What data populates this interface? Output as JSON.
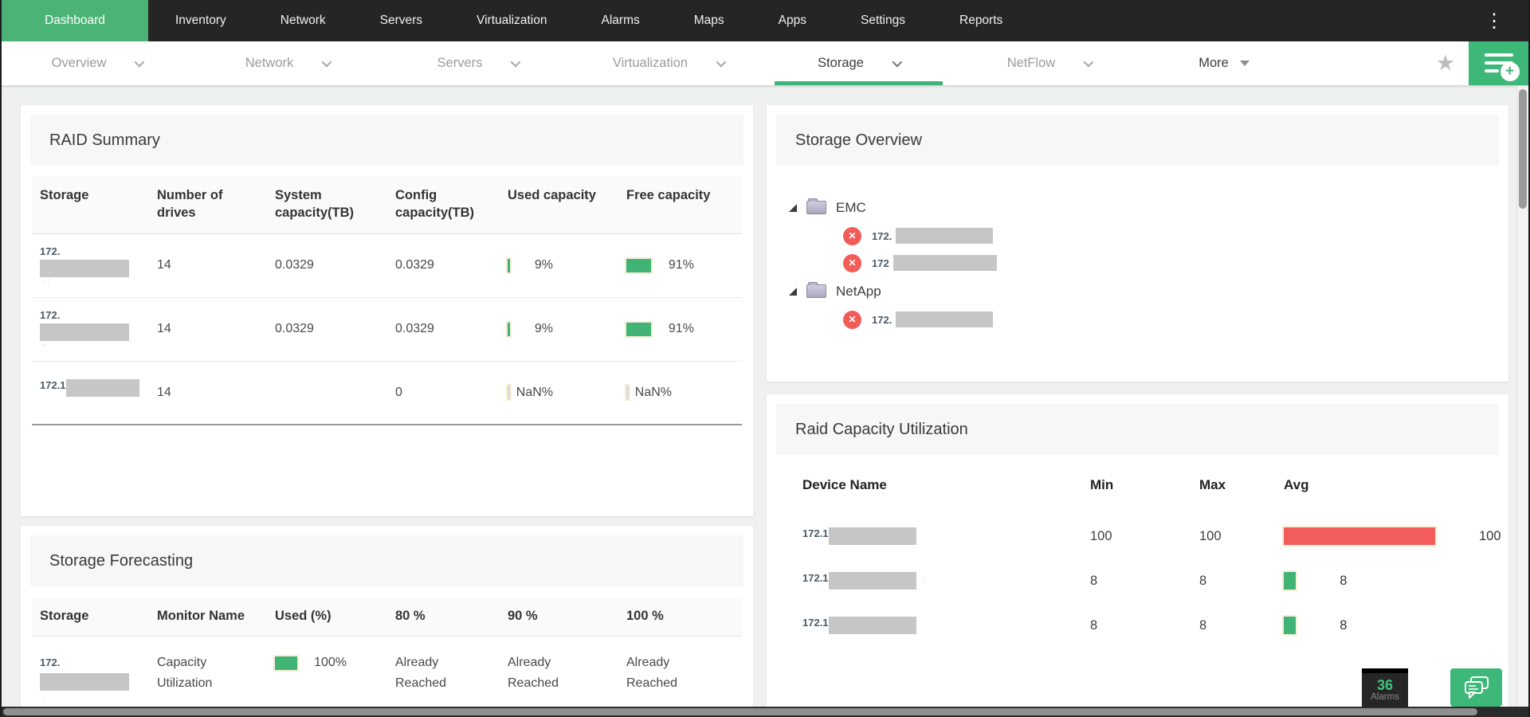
{
  "colors": {
    "accent_green": "#3eb878",
    "nav_green": "#4cb376",
    "alert_red": "#f25c5a",
    "nav_bg": "#252525",
    "page_bg": "#eff0f0"
  },
  "icons": {
    "star": "★",
    "kebab": "⋮",
    "close": "✕",
    "plus": "+"
  },
  "topnav": {
    "items": [
      {
        "label": "Dashboard"
      },
      {
        "label": "Inventory"
      },
      {
        "label": "Network"
      },
      {
        "label": "Servers"
      },
      {
        "label": "Virtualization"
      },
      {
        "label": "Alarms"
      },
      {
        "label": "Maps"
      },
      {
        "label": "Apps"
      },
      {
        "label": "Settings"
      },
      {
        "label": "Reports"
      }
    ]
  },
  "subnav": {
    "items": [
      {
        "label": "Overview"
      },
      {
        "label": "Network"
      },
      {
        "label": "Servers"
      },
      {
        "label": "Virtualization"
      },
      {
        "label": "Storage"
      },
      {
        "label": "NetFlow"
      },
      {
        "label": "More"
      }
    ]
  },
  "raid_summary": {
    "title": "RAID Summary",
    "columns": [
      "Storage",
      "Number of drives",
      "System capacity(TB)",
      "Config capacity(TB)",
      "Used capacity",
      "Free capacity"
    ],
    "rows": [
      {
        "storage_prefix": "172.",
        "storage_sub": "· :",
        "drives": "14",
        "system_capacity": "0.0329",
        "config_capacity": "0.0329",
        "used_label": "9%",
        "used_value": 9,
        "free_label": "91%",
        "free_value": 91
      },
      {
        "storage_prefix": "172.",
        "storage_sub": "··",
        "drives": "14",
        "system_capacity": "0.0329",
        "config_capacity": "0.0329",
        "used_label": "9%",
        "used_value": 9,
        "free_label": "91%",
        "free_value": 91
      },
      {
        "storage_prefix": "172.1",
        "storage_sub": "",
        "drives": "14",
        "system_capacity": "",
        "config_capacity": "0",
        "used_label": "NaN%",
        "used_value": 0,
        "free_label": "NaN%",
        "free_value": 0
      }
    ]
  },
  "storage_forecasting": {
    "title": "Storage Forecasting",
    "columns": [
      "Storage",
      "Monitor Name",
      "Used (%)",
      "80 %",
      "90 %",
      "100 %"
    ],
    "rows": [
      {
        "storage_prefix": "172.",
        "storage_sub": "·",
        "monitor_name": "Capacity Utilization",
        "used_label": "100%",
        "used_value": 100,
        "pct80": "Already Reached",
        "pct90": "Already Reached",
        "pct100": "Already Reached"
      }
    ]
  },
  "storage_overview": {
    "title": "Storage Overview",
    "tree": [
      {
        "label": "EMC",
        "children": [
          {
            "prefix": "172."
          },
          {
            "prefix": "172"
          }
        ]
      },
      {
        "label": "NetApp",
        "children": [
          {
            "prefix": "172."
          }
        ]
      }
    ]
  },
  "raid_capacity": {
    "title": "Raid Capacity Utilization",
    "columns": [
      "Device Name",
      "Min",
      "Max",
      "Avg"
    ],
    "rows": [
      {
        "device_prefix": "172.1",
        "device_sub": "",
        "min": "100",
        "max": "100",
        "avg_label": "100",
        "avg_value": 100,
        "severity": "red"
      },
      {
        "device_prefix": "172.1",
        "device_sub": ":",
        "min": "8",
        "max": "8",
        "avg_label": "8",
        "avg_value": 8,
        "severity": "green"
      },
      {
        "device_prefix": "172.1",
        "device_sub": "",
        "min": "8",
        "max": "8",
        "avg_label": "8",
        "avg_value": 8,
        "severity": "green"
      }
    ]
  },
  "widgets": {
    "alarm_count": "36",
    "alarm_label": "Alarms"
  }
}
